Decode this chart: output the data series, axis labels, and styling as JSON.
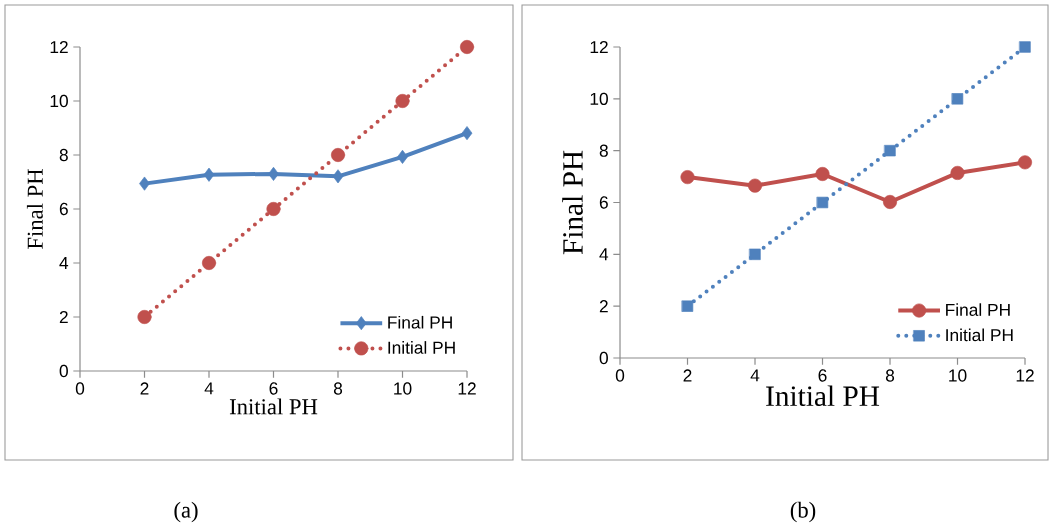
{
  "chart_data": [
    {
      "type": "line",
      "x": [
        2,
        4,
        6,
        8,
        10,
        12
      ],
      "xlabel": "Initial PH",
      "ylabel": "Final PH",
      "xlim": [
        0,
        12
      ],
      "ylim": [
        0,
        12
      ],
      "xticks": [
        0,
        2,
        4,
        6,
        8,
        10,
        12
      ],
      "yticks": [
        0,
        2,
        4,
        6,
        8,
        10,
        12
      ],
      "legend": "bottom right",
      "annotations": [
        "(a)"
      ],
      "series": [
        {
          "name": "Final PH",
          "color": "#4f81bd",
          "marker": "diamond",
          "line_style": "solid",
          "values": [
            6.94,
            7.27,
            7.3,
            7.21,
            7.93,
            8.81
          ]
        },
        {
          "name": "Initial PH",
          "color": "#c0504d",
          "marker": "circle",
          "line_style": "dotted",
          "values": [
            2,
            4,
            6,
            8,
            10,
            12
          ]
        }
      ]
    },
    {
      "type": "line",
      "x": [
        2,
        4,
        6,
        8,
        10,
        12
      ],
      "xlabel": "Initial PH",
      "ylabel": "Final PH",
      "xlim": [
        0,
        12
      ],
      "ylim": [
        0,
        12
      ],
      "xticks": [
        0,
        2,
        4,
        6,
        8,
        10,
        12
      ],
      "yticks": [
        0,
        2,
        4,
        6,
        8,
        10,
        12
      ],
      "legend": "bottom right",
      "annotations": [
        "(b)"
      ],
      "series": [
        {
          "name": "Final PH",
          "color": "#c0504d",
          "marker": "circle",
          "line_style": "solid",
          "values": [
            6.98,
            6.65,
            7.1,
            6.02,
            7.14,
            7.55
          ]
        },
        {
          "name": "Initial PH",
          "color": "#4f81bd",
          "marker": "square",
          "line_style": "dotted",
          "values": [
            2,
            4,
            6,
            8,
            10,
            12
          ]
        }
      ]
    }
  ]
}
